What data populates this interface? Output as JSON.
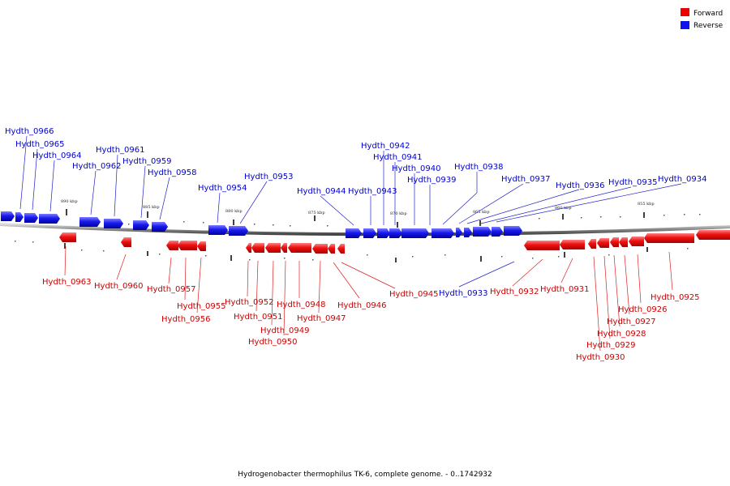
{
  "legend": {
    "forward": {
      "label": "Forward",
      "color": "#ee0000"
    },
    "reverse": {
      "label": "Reverse",
      "color": "#1111ee"
    }
  },
  "caption": "Hydrogenobacter thermophilus TK-6, complete genome. - 0..1742932",
  "ticks": [
    "890 kbp",
    "885 kbp",
    "880 kbp",
    "875 kbp",
    "870 kbp",
    "865 kbp",
    "860 kbp",
    "855 kbp"
  ],
  "genes_reverse": [
    "Hydth_0966",
    "Hydth_0965",
    "Hydth_0964",
    "Hydth_0962",
    "Hydth_0961",
    "Hydth_0959",
    "Hydth_0958",
    "Hydth_0954",
    "Hydth_0953",
    "Hydth_0944",
    "Hydth_0943",
    "Hydth_0942",
    "Hydth_0941",
    "Hydth_0940",
    "Hydth_0939",
    "Hydth_0938",
    "Hydth_0937",
    "Hydth_0936",
    "Hydth_0935",
    "Hydth_0934",
    "Hydth_0933"
  ],
  "genes_forward": [
    "Hydth_0963",
    "Hydth_0960",
    "Hydth_0957",
    "Hydth_0955",
    "Hydth_0956",
    "Hydth_0952",
    "Hydth_0951",
    "Hydth_0949",
    "Hydth_0950",
    "Hydth_0948",
    "Hydth_0947",
    "Hydth_0946",
    "Hydth_0945",
    "Hydth_0932",
    "Hydth_0931",
    "Hydth_0925",
    "Hydth_0926",
    "Hydth_0927",
    "Hydth_0928",
    "Hydth_0929",
    "Hydth_0930"
  ]
}
